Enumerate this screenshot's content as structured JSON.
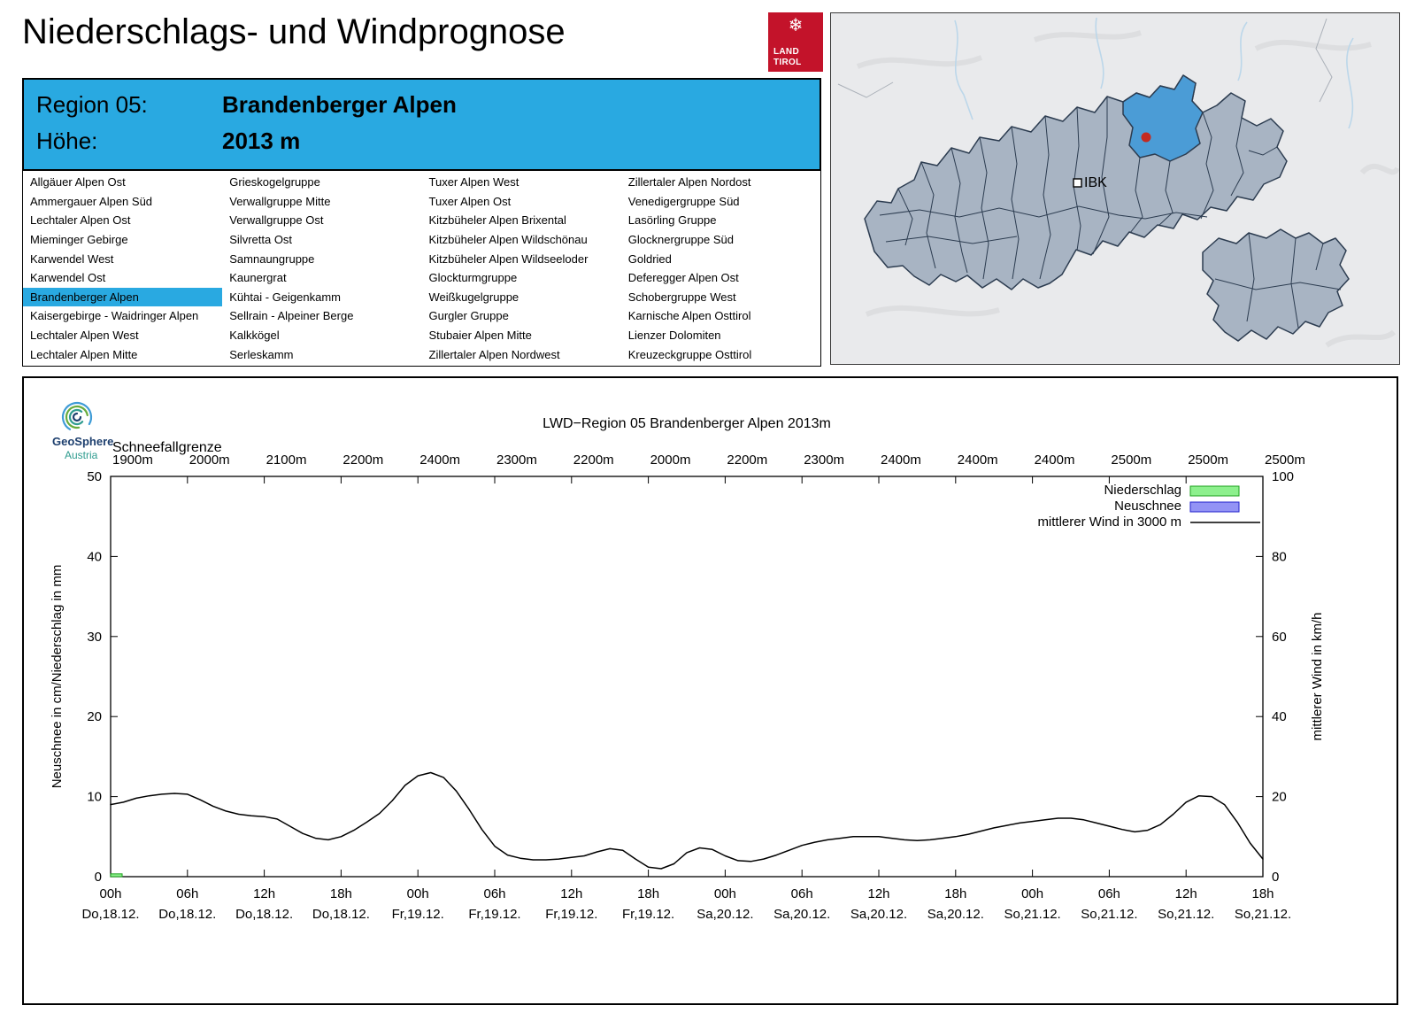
{
  "header": {
    "title": "Niederschlags- und Windprognose"
  },
  "logo": {
    "line1": "LAND",
    "line2": "TIROL",
    "color": "#c3132a"
  },
  "region_header": {
    "region_label": "Region 05:",
    "region_value": "Brandenberger Alpen",
    "altitude_label": "Höhe:",
    "altitude_value": "2013 m",
    "bg_color": "#29a9e1"
  },
  "region_list": {
    "selected": "Brandenberger Alpen",
    "columns": [
      [
        "Allgäuer Alpen Ost",
        "Ammergauer Alpen Süd",
        "Lechtaler Alpen Ost",
        "Mieminger Gebirge",
        "Karwendel West",
        "Karwendel Ost",
        "Brandenberger Alpen",
        "Kaisergebirge - Waidringer Alpen",
        "Lechtaler Alpen West",
        "Lechtaler Alpen Mitte"
      ],
      [
        "Grieskogelgruppe",
        "Verwallgruppe Mitte",
        "Verwallgruppe Ost",
        "Silvretta Ost",
        "Samnaungruppe",
        "Kaunergrat",
        "Kühtai - Geigenkamm",
        "Sellrain - Alpeiner Berge",
        "Kalkkögel",
        "Serleskamm"
      ],
      [
        "Tuxer Alpen West",
        "Tuxer Alpen Ost",
        "Kitzbüheler Alpen Brixental",
        "Kitzbüheler Alpen Wildschönau",
        "Kitzbüheler Alpen Wildseeloder",
        "Glockturmgruppe",
        "Weißkugelgruppe",
        "Gurgler Gruppe",
        "Stubaier Alpen Mitte",
        "Zillertaler Alpen Nordwest"
      ],
      [
        "Zillertaler Alpen Nordost",
        "Venedigergruppe Süd",
        "Lasörling Gruppe",
        "Glocknergruppe Süd",
        "Goldried",
        "Deferegger Alpen Ost",
        "Schobergruppe West",
        "Karnische Alpen Osttirol",
        "Lienzer Dolomiten",
        "Kreuzeckgruppe Osttirol"
      ]
    ]
  },
  "map": {
    "city_label": "IBK",
    "highlight_color": "#4b9cd6",
    "land_color": "#a8b4c3",
    "border_color": "#2c3c50",
    "marker_color": "#c32a21"
  },
  "geosphere_logo": {
    "line1": "GeoSphere",
    "line2": "Austria"
  },
  "chart_data": {
    "type": "line",
    "title": "LWD−Region 05 Brandenberger Alpen 2013m",
    "top_axis_label": "Schneefallgrenze",
    "ylabel_left": "Neuschnee in cm/Niederschlag in mm",
    "ylabel_right": "mittlerer Wind in km/h",
    "ylim_left": [
      0,
      50
    ],
    "ylim_right": [
      0,
      100
    ],
    "yticks_left": [
      0,
      10,
      20,
      30,
      40,
      50
    ],
    "yticks_right": [
      0,
      20,
      40,
      60,
      80,
      100
    ],
    "x_range_hours": [
      0,
      90
    ],
    "grid": false,
    "legend_position": "top-right",
    "legend": [
      {
        "label": "Niederschlag",
        "type": "box",
        "fill": "#8df08d",
        "border": "#1ca01c"
      },
      {
        "label": "Neuschnee",
        "type": "box",
        "fill": "#9393f5",
        "border": "#2222cc"
      },
      {
        "label": "mittlerer Wind in 3000 m",
        "type": "line",
        "color": "#000000"
      }
    ],
    "x_ticks": [
      {
        "hour": 0,
        "time": "00h",
        "day": "Do,18.12.",
        "snowline": "1900m"
      },
      {
        "hour": 6,
        "time": "06h",
        "day": "Do,18.12.",
        "snowline": "2000m"
      },
      {
        "hour": 12,
        "time": "12h",
        "day": "Do,18.12.",
        "snowline": "2100m"
      },
      {
        "hour": 18,
        "time": "18h",
        "day": "Do,18.12.",
        "snowline": "2200m"
      },
      {
        "hour": 24,
        "time": "00h",
        "day": "Fr,19.12.",
        "snowline": "2400m"
      },
      {
        "hour": 30,
        "time": "06h",
        "day": "Fr,19.12.",
        "snowline": "2300m"
      },
      {
        "hour": 36,
        "time": "12h",
        "day": "Fr,19.12.",
        "snowline": "2200m"
      },
      {
        "hour": 42,
        "time": "18h",
        "day": "Fr,19.12.",
        "snowline": "2000m"
      },
      {
        "hour": 48,
        "time": "00h",
        "day": "Sa,20.12.",
        "snowline": "2200m"
      },
      {
        "hour": 54,
        "time": "06h",
        "day": "Sa,20.12.",
        "snowline": "2300m"
      },
      {
        "hour": 60,
        "time": "12h",
        "day": "Sa,20.12.",
        "snowline": "2400m"
      },
      {
        "hour": 66,
        "time": "18h",
        "day": "Sa,20.12.",
        "snowline": "2400m"
      },
      {
        "hour": 72,
        "time": "00h",
        "day": "So,21.12.",
        "snowline": "2400m"
      },
      {
        "hour": 78,
        "time": "06h",
        "day": "So,21.12.",
        "snowline": "2500m"
      },
      {
        "hour": 84,
        "time": "12h",
        "day": "So,21.12.",
        "snowline": "2500m"
      },
      {
        "hour": 90,
        "time": "18h",
        "day": "So,21.12.",
        "snowline": "2500m"
      }
    ],
    "wind_series": {
      "name": "mittlerer Wind in 3000 m",
      "unit_note": "plotted against left axis scale (right axis km/h = 2x)",
      "x_start_hour": 0,
      "x_step_hours": 1,
      "values": [
        9.0,
        9.3,
        9.8,
        10.1,
        10.3,
        10.4,
        10.3,
        9.6,
        8.8,
        8.2,
        7.8,
        7.6,
        7.5,
        7.2,
        6.3,
        5.4,
        4.8,
        4.6,
        5.0,
        5.8,
        6.8,
        7.9,
        9.5,
        11.4,
        12.6,
        13.0,
        12.4,
        10.7,
        8.4,
        5.9,
        3.8,
        2.7,
        2.3,
        2.1,
        2.1,
        2.2,
        2.4,
        2.6,
        3.1,
        3.5,
        3.3,
        2.2,
        1.2,
        1.0,
        1.6,
        3.0,
        3.6,
        3.4,
        2.6,
        2.0,
        1.9,
        2.2,
        2.7,
        3.3,
        3.9,
        4.3,
        4.6,
        4.8,
        5.0,
        5.0,
        5.0,
        4.8,
        4.6,
        4.5,
        4.6,
        4.8,
        5.0,
        5.3,
        5.7,
        6.1,
        6.4,
        6.7,
        6.9,
        7.1,
        7.3,
        7.3,
        7.1,
        6.7,
        6.3,
        5.9,
        5.6,
        5.8,
        6.5,
        7.8,
        9.3,
        10.1,
        10.0,
        9.0,
        6.8,
        4.2,
        2.2
      ]
    },
    "precip_bars": [
      {
        "from": 0,
        "to": 0.9,
        "value": 0.35
      }
    ],
    "snow_bars": []
  }
}
